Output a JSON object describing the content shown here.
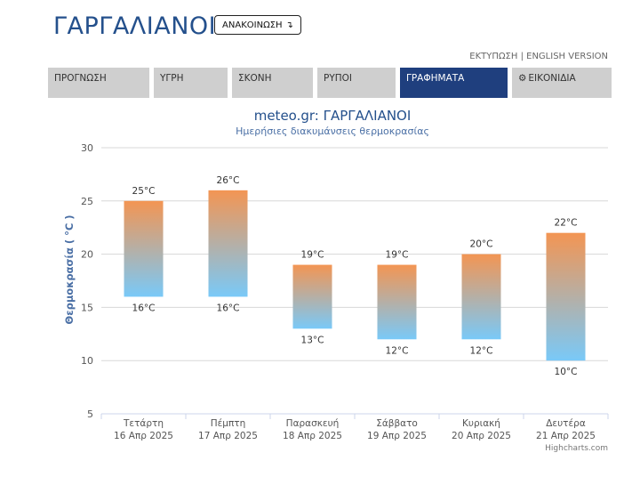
{
  "header": {
    "title": "ΓΑΡΓΑΛΙΑΝΟΙ",
    "announce_label": "ΑΝΑΚΟΙΝΩΣΗ",
    "announce_icon": "arrow-down-icon",
    "print_label": "ΕΚΤΥΠΩΣΗ",
    "separator": "|",
    "english_label": "ENGLISH VERSION"
  },
  "tabs": [
    {
      "label": "ΠΡΟΓΝΩΣΗ",
      "active": false
    },
    {
      "label": "ΥΓΡΗ",
      "active": false
    },
    {
      "label": "ΣΚΟΝΗ",
      "active": false
    },
    {
      "label": "ΡΥΠΟΙ",
      "active": false
    },
    {
      "label": "ΓΡΑΦΗΜΑΤΑ",
      "active": true
    },
    {
      "label": "ΕΙΚΟΝΙΔΙΑ",
      "active": false,
      "icon": "gear-icon"
    }
  ],
  "chart_data": {
    "type": "columnrange",
    "title": "meteo.gr: ΓΑΡΓΑΛΙΑΝΟΙ",
    "subtitle": "Ημερήσιες διακυμάνσεις θερμοκρασίας",
    "ylabel": "Θερμοκρασία ( °C )",
    "ylim": [
      5,
      30
    ],
    "yticks": [
      5,
      10,
      15,
      20,
      25,
      30
    ],
    "grid": true,
    "categories": [
      {
        "day": "Τετάρτη",
        "date": "16 Απρ 2025"
      },
      {
        "day": "Πέμπτη",
        "date": "17 Απρ 2025"
      },
      {
        "day": "Παρασκευή",
        "date": "18 Απρ 2025"
      },
      {
        "day": "Σάββατο",
        "date": "19 Απρ 2025"
      },
      {
        "day": "Κυριακή",
        "date": "20 Απρ 2025"
      },
      {
        "day": "Δευτέρα",
        "date": "21 Απρ 2025"
      }
    ],
    "low": [
      16,
      16,
      13,
      12,
      12,
      10
    ],
    "high": [
      25,
      26,
      19,
      19,
      20,
      22
    ],
    "unit": "°C",
    "credits": "Highcharts.com",
    "colors": {
      "top": "#f39553",
      "bottom": "#79c9f8",
      "title": "#24508c",
      "subtitle": "#4a6fa5",
      "ylabel": "#4a6fa5"
    }
  }
}
